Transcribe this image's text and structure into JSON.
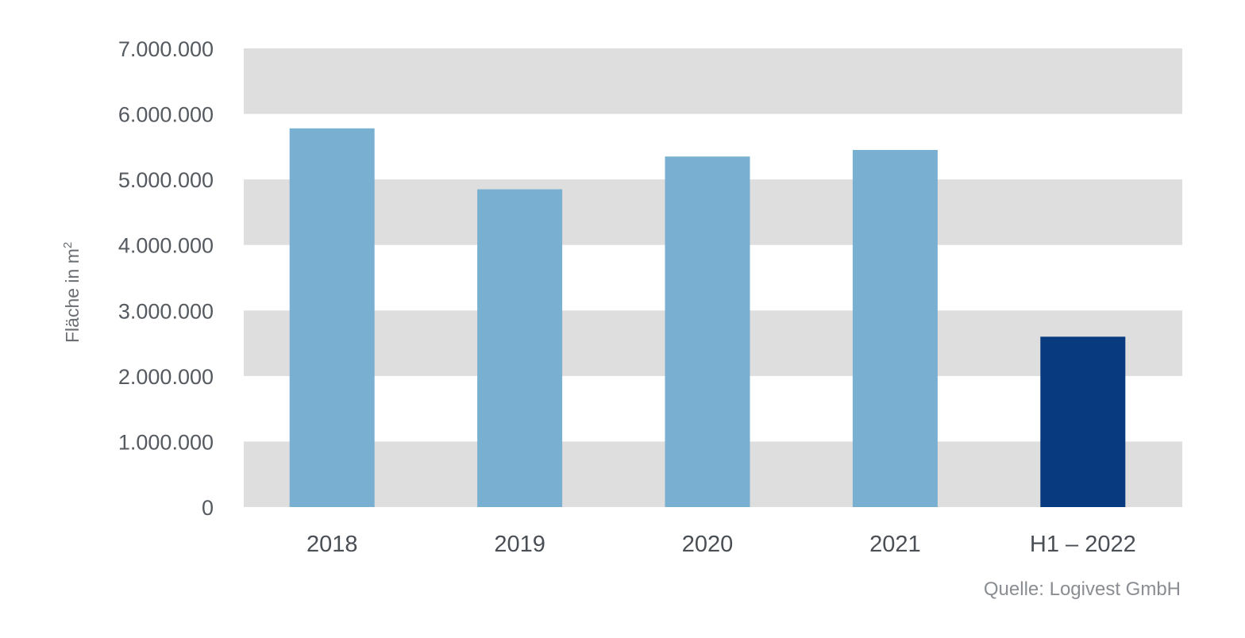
{
  "chart_data": {
    "type": "bar",
    "categories": [
      "2018",
      "2019",
      "2020",
      "2021",
      "H1 – 2022"
    ],
    "values": [
      5780000,
      4850000,
      5350000,
      5450000,
      2600000
    ],
    "title": "",
    "xlabel": "",
    "ylabel": "Fläche in m",
    "ylabel_superscript": "2",
    "ylim": [
      0,
      7000000
    ],
    "yticks": [
      0,
      1000000,
      2000000,
      3000000,
      4000000,
      5000000,
      6000000,
      7000000
    ],
    "ytick_labels": [
      "0",
      "1.000.000",
      "2.000.000",
      "3.000.000",
      "4.000.000",
      "5.000.000",
      "6.000.000",
      "7.000.000"
    ],
    "grid": "alternating horizontal bands",
    "legend": "none",
    "colors": {
      "bar": "#79afd0",
      "highlight_bar": "#083a80",
      "band": "#dedede"
    },
    "highlight_index": 4,
    "source": "Quelle: Logivest GmbH"
  }
}
